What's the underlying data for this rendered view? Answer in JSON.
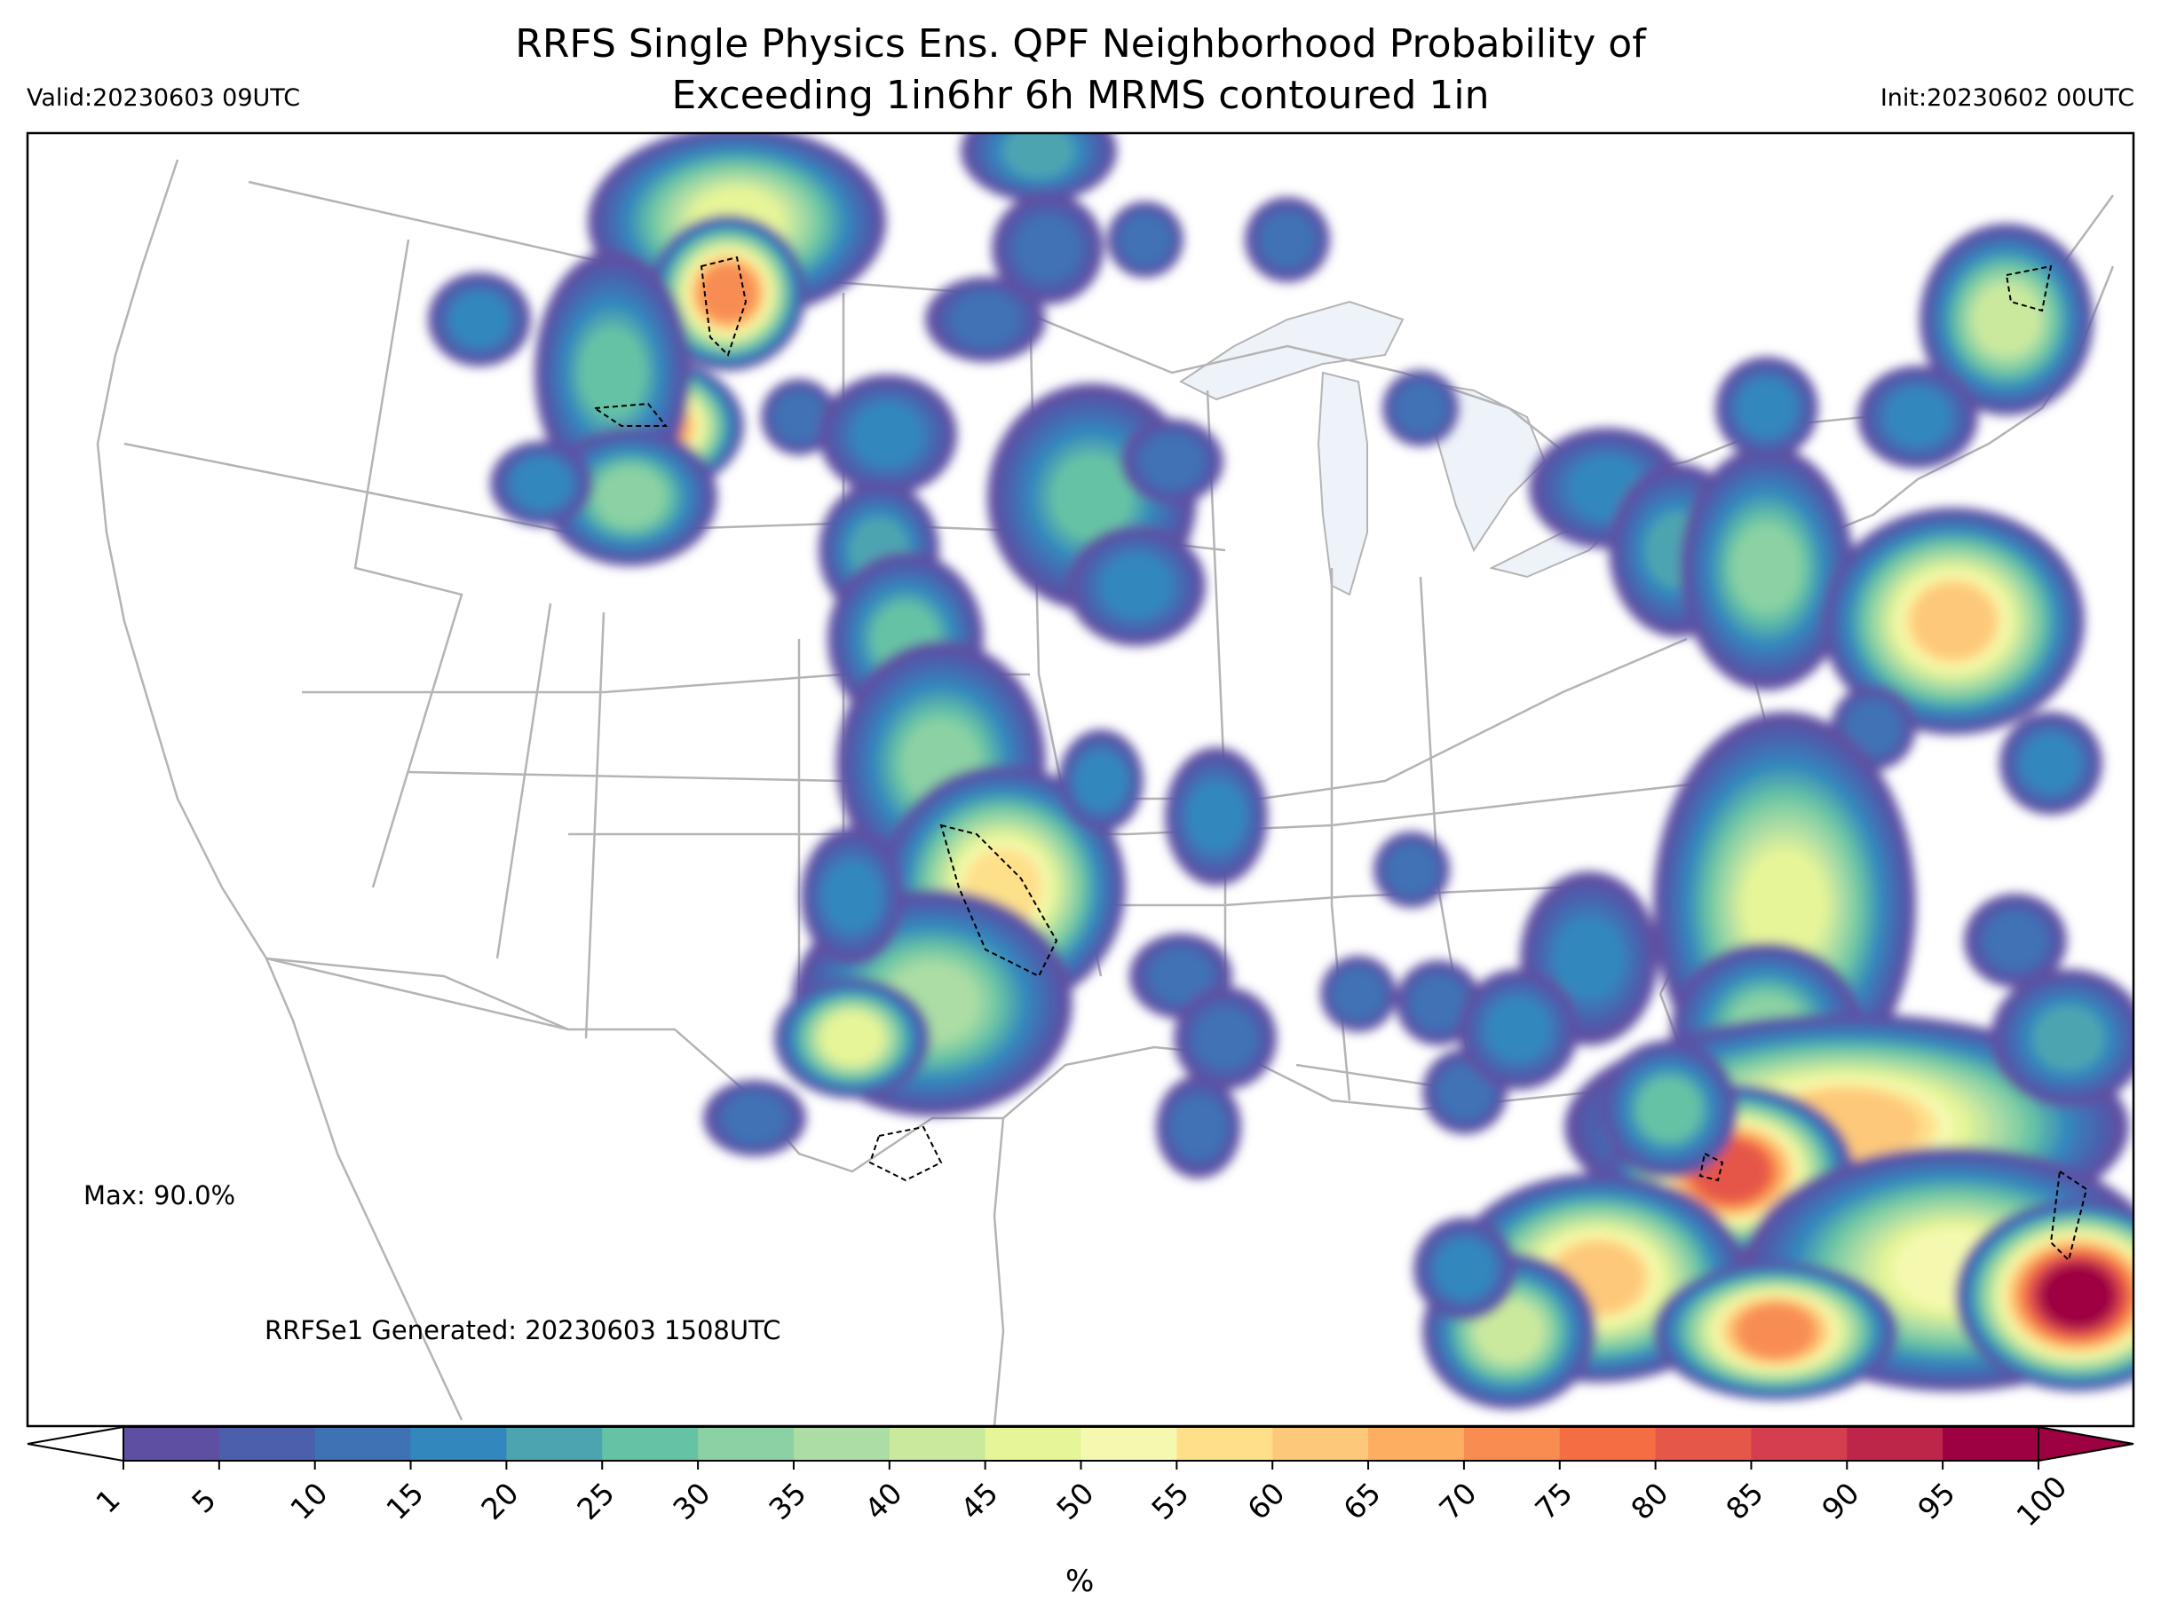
{
  "title": {
    "line1": "RRFS Single Physics Ens. QPF Neighborhood Probability of",
    "line2": "Exceeding 1in6hr 6h MRMS contoured 1in"
  },
  "valid_label": "Valid:20230603 09UTC",
  "init_label": "Init:20230602 00UTC",
  "max_label": "Max: 90.0%",
  "generated_label": "RRFSe1 Generated: 20230603 1508UTC",
  "colorbar": {
    "unit": "%",
    "ticks": [
      "1",
      "5",
      "10",
      "15",
      "20",
      "25",
      "30",
      "35",
      "40",
      "45",
      "50",
      "55",
      "60",
      "65",
      "70",
      "75",
      "80",
      "85",
      "90",
      "95",
      "100"
    ],
    "colors": [
      "#5e4fa2",
      "#4b5fad",
      "#3f72b5",
      "#3288bd",
      "#4da4b1",
      "#66c2a5",
      "#8bd1a4",
      "#abdda4",
      "#cbe99d",
      "#e6f598",
      "#f5f9b0",
      "#fee08b",
      "#fdc879",
      "#fdae61",
      "#f88d52",
      "#f46d43",
      "#e55749",
      "#d53e4f",
      "#bd2649",
      "#9e0142"
    ]
  },
  "map_colors": {
    "borders": "#b4b4b4",
    "lakes": "#eef3fa",
    "mrms_contour": "#000000"
  }
}
